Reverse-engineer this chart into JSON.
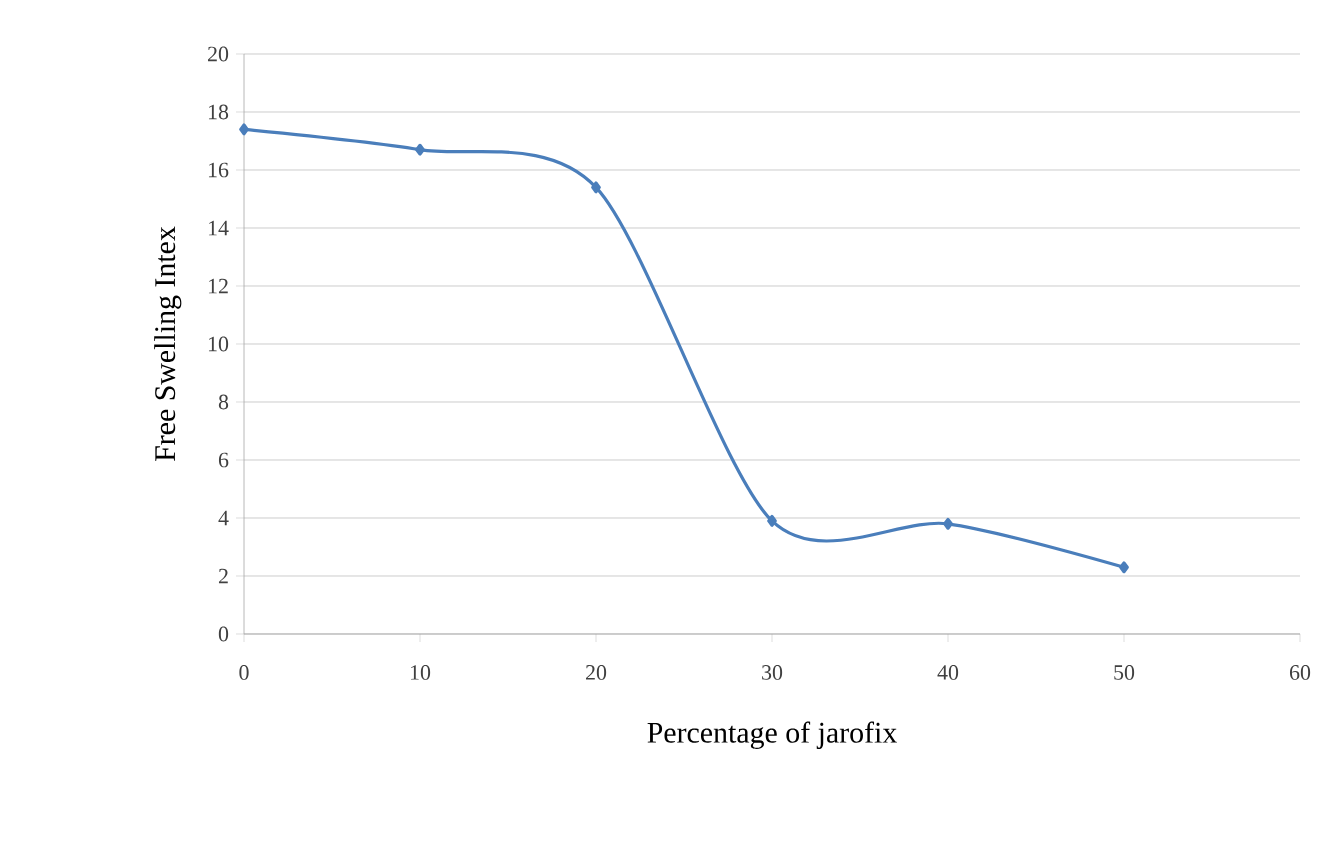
{
  "chart_data": {
    "type": "line",
    "xlabel": "Percentage of jarofix",
    "ylabel": "Free Swelling Intex",
    "x": [
      0,
      10,
      20,
      30,
      40,
      50
    ],
    "series": [
      {
        "color": "#4a7ebb",
        "values": [
          17.4,
          16.7,
          15.4,
          3.9,
          3.8,
          2.3
        ]
      }
    ],
    "xlim": [
      0,
      60
    ],
    "xticks": [
      0,
      10,
      20,
      30,
      40,
      50,
      60
    ],
    "ylim": [
      0,
      20
    ],
    "yticks": [
      0,
      2,
      4,
      6,
      8,
      10,
      12,
      14,
      16,
      18,
      20
    ],
    "grid": "y",
    "marker": "diamond",
    "line_style": "solid"
  }
}
